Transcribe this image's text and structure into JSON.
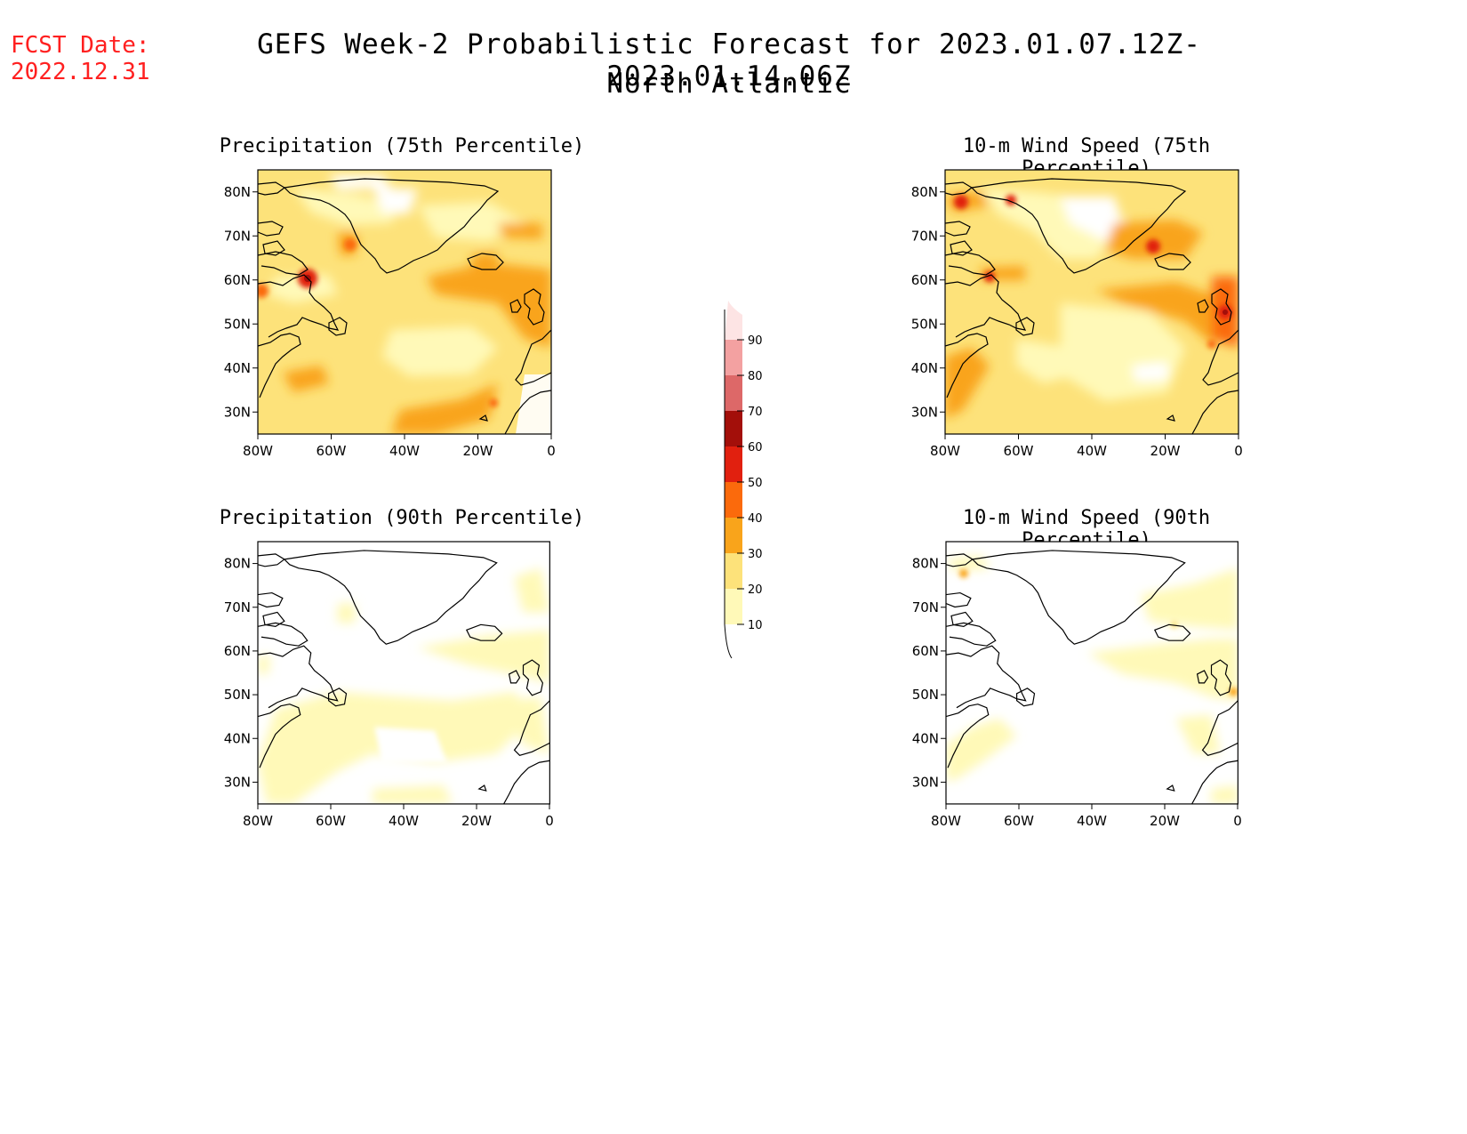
{
  "header": {
    "fcst_line1": "FCST Date:",
    "fcst_line2": "2022.12.31",
    "title": "GEFS Week-2 Probabilistic Forecast for 2023.01.07.12Z-2023.01.14.06Z",
    "subtitle": "North Atlantic"
  },
  "axes": {
    "lat_labels": [
      "80N",
      "70N",
      "60N",
      "50N",
      "40N",
      "30N"
    ],
    "lon_labels": [
      "80W",
      "60W",
      "40W",
      "20W",
      "0"
    ]
  },
  "panels": [
    {
      "title": "Precipitation (75th Percentile)"
    },
    {
      "title": "10-m Wind Speed (75th Percentile)"
    },
    {
      "title": "Precipitation (90th Percentile)"
    },
    {
      "title": "10-m Wind Speed (90th Percentile)"
    }
  ],
  "colorbar": {
    "levels": [
      "10",
      "20",
      "30",
      "40",
      "50",
      "60",
      "70",
      "80",
      "90"
    ],
    "colors": [
      "#fff9b8",
      "#fde27a",
      "#f9a41b",
      "#fb6a0c",
      "#e1200f",
      "#a30f0a",
      "#dd6868",
      "#f3a1a1",
      "#fde4e4"
    ]
  }
}
